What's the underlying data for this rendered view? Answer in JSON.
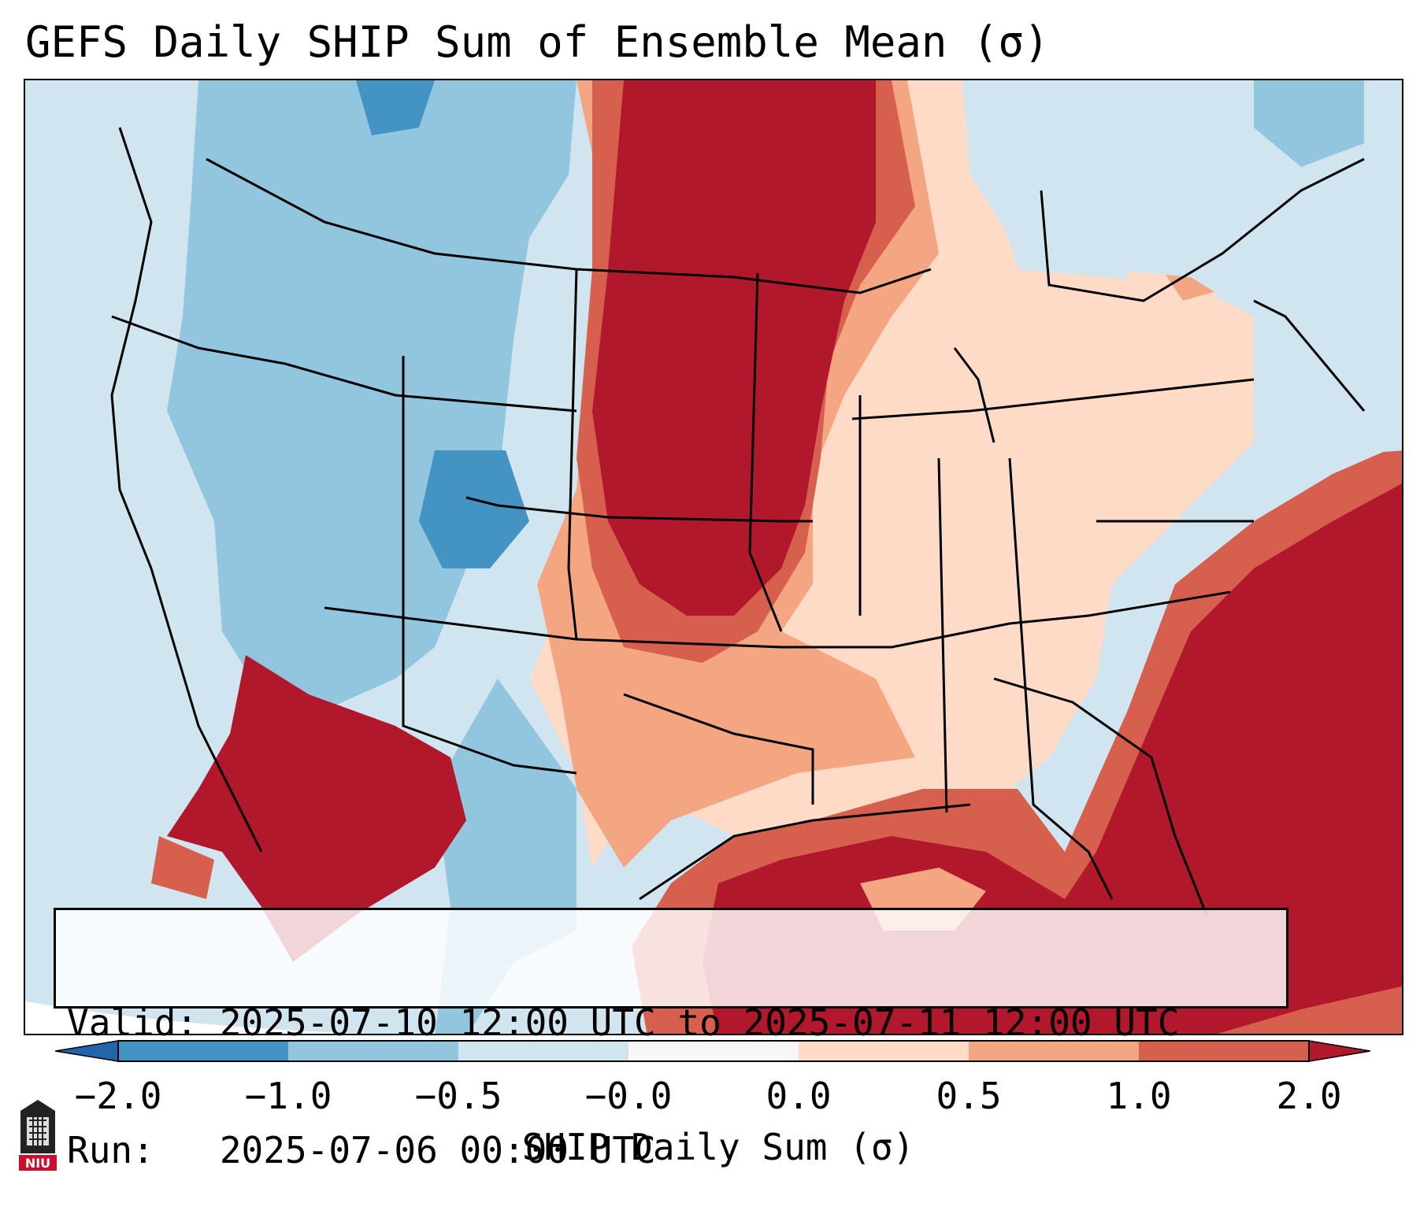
{
  "title": "GEFS Daily SHIP Sum of Ensemble Mean (σ)",
  "info": {
    "valid_line": "Valid: 2025-07-10 12:00 UTC to 2025-07-11 12:00 UTC",
    "run_line": "Run:   2025-07-06 00:00 UTC"
  },
  "colorbar": {
    "label": "SHIP Daily Sum (σ)",
    "ticks": [
      "−2.0",
      "−1.0",
      "−0.5",
      "−0.0",
      "0.0",
      "0.5",
      "1.0",
      "2.0"
    ],
    "bins": [
      {
        "from": -2.0,
        "to": -1.0,
        "color": "#4393c3"
      },
      {
        "from": -1.0,
        "to": -0.5,
        "color": "#92c5de"
      },
      {
        "from": -0.5,
        "to": -0.0,
        "color": "#d1e5f0"
      },
      {
        "from": -0.0,
        "to": 0.0,
        "color": "#f7f7f7"
      },
      {
        "from": 0.0,
        "to": 0.5,
        "color": "#fddbc7"
      },
      {
        "from": 0.5,
        "to": 1.0,
        "color": "#f4a582"
      },
      {
        "from": 1.0,
        "to": 2.0,
        "color": "#d6604d"
      }
    ],
    "under_color": "#2166ac",
    "over_color": "#b2182b",
    "extend": "both"
  },
  "logo": {
    "text": "NIU",
    "color": "#c8102e"
  },
  "map": {
    "projection": "Lambert conformal, CONUS",
    "max_color": "#b2182b",
    "regions": {
      "plains_core": "strongly positive",
      "southeast_atlantic": "strongly positive",
      "gulf_of_mexico": "strongly positive",
      "mexico_northwest": "strongly positive",
      "great_lakes_midwest": "positive",
      "rockies_west": "negative",
      "pacific_northwest": "negative",
      "new_england": "slightly negative"
    }
  }
}
